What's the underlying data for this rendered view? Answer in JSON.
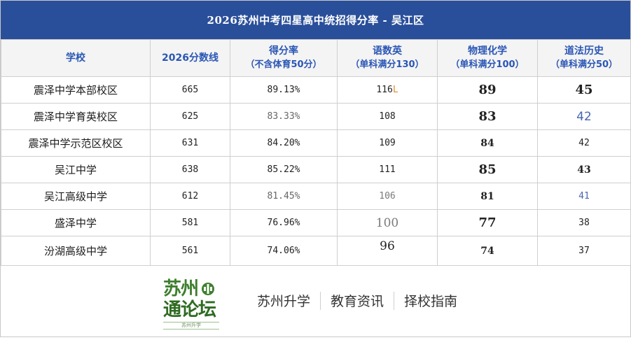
{
  "title": "2026苏州中考四星高中统招得分率 - 吴江区",
  "headers": [
    {
      "main": "学校",
      "sub": ""
    },
    {
      "main": "2026分数线",
      "sub": ""
    },
    {
      "main": "得分率",
      "sub": "（不含体育50分）"
    },
    {
      "main": "语数英",
      "sub": "（单科满分130）"
    },
    {
      "main": "物理化学",
      "sub": "（单科满分100）"
    },
    {
      "main": "道法历史",
      "sub": "（单科满分50）"
    }
  ],
  "rows": [
    {
      "school": "震泽中学本部校区",
      "line": "665",
      "rate": "89.13%",
      "ywy": "116",
      "ywy_suffix": "L",
      "wl": "89",
      "df": "45"
    },
    {
      "school": "震泽中学育英校区",
      "line": "625",
      "rate": "83.33%",
      "ywy": "108",
      "ywy_suffix": "",
      "wl": "83",
      "df": "42"
    },
    {
      "school": "震泽中学示范区校区",
      "line": "631",
      "rate": "84.20%",
      "ywy": "109",
      "ywy_suffix": "",
      "wl": "84",
      "df": "42"
    },
    {
      "school": "吴江中学",
      "line": "638",
      "rate": "85.22%",
      "ywy": "111",
      "ywy_suffix": "",
      "wl": "85",
      "df": "43"
    },
    {
      "school": "吴江高级中学",
      "line": "612",
      "rate": "81.45%",
      "ywy": "106",
      "ywy_suffix": "",
      "wl": "81",
      "df": "41"
    },
    {
      "school": "盛泽中学",
      "line": "581",
      "rate": "76.96%",
      "ywy": "100",
      "ywy_suffix": "",
      "wl": "77",
      "df": "38"
    },
    {
      "school": "汾湖高级中学",
      "line": "561",
      "rate": "74.06%",
      "ywy": "96",
      "ywy_suffix": "",
      "wl": "74",
      "df": "37"
    }
  ],
  "footer": {
    "logo_line1": "苏州",
    "logo_line2": "通论坛",
    "logo_tagline": "苏州升学",
    "links": [
      "苏州升学",
      "教育资讯",
      "择校指南"
    ]
  }
}
